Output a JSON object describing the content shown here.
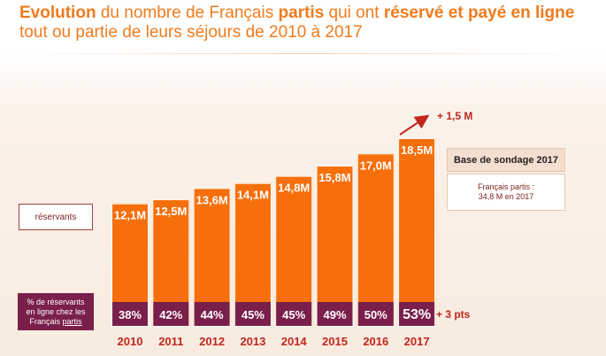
{
  "title": {
    "part1": "Evolution",
    "part2": " du nombre de Français ",
    "part3": "partis",
    "part4": " qui ont ",
    "part5": "réservé et payé en ligne",
    "part6": " tout ou partie de leurs séjours de 2010 à 2017"
  },
  "legend": {
    "reservants": "réservants",
    "pct_line1": "% de réservants",
    "pct_line2": "en ligne chez les",
    "pct_line3": "Français ",
    "pct_line3_underlined": "partis"
  },
  "base": {
    "title": "Base de sondage 2017",
    "desc_line1": "Français partis :",
    "desc_line2": "34,8 M en 2017"
  },
  "annotations": {
    "growth": "+ 1,5 M",
    "points": "+ 3 pts"
  },
  "colors": {
    "bar": "#f76f0a",
    "pct_box": "#7a1f4b",
    "title": "#f07b1e",
    "year": "#c2261c",
    "arrow": "#c2261c"
  },
  "chart_data": {
    "type": "bar",
    "categories": [
      "2010",
      "2011",
      "2012",
      "2013",
      "2014",
      "2015",
      "2016",
      "2017"
    ],
    "values": [
      12.1,
      12.5,
      13.6,
      14.1,
      14.8,
      15.8,
      17.0,
      18.5
    ],
    "value_labels": [
      "12,1M",
      "12,5M",
      "13,6M",
      "14,1M",
      "14,8M",
      "15,8M",
      "17,0M",
      "18,5M"
    ],
    "percent_values": [
      38,
      42,
      44,
      45,
      45,
      49,
      50,
      53
    ],
    "percent_labels": [
      "38%",
      "42%",
      "44%",
      "45%",
      "45%",
      "49%",
      "50%",
      "53%"
    ],
    "title": "",
    "xlabel": "",
    "ylabel": "",
    "grid": false,
    "legend": "left"
  }
}
